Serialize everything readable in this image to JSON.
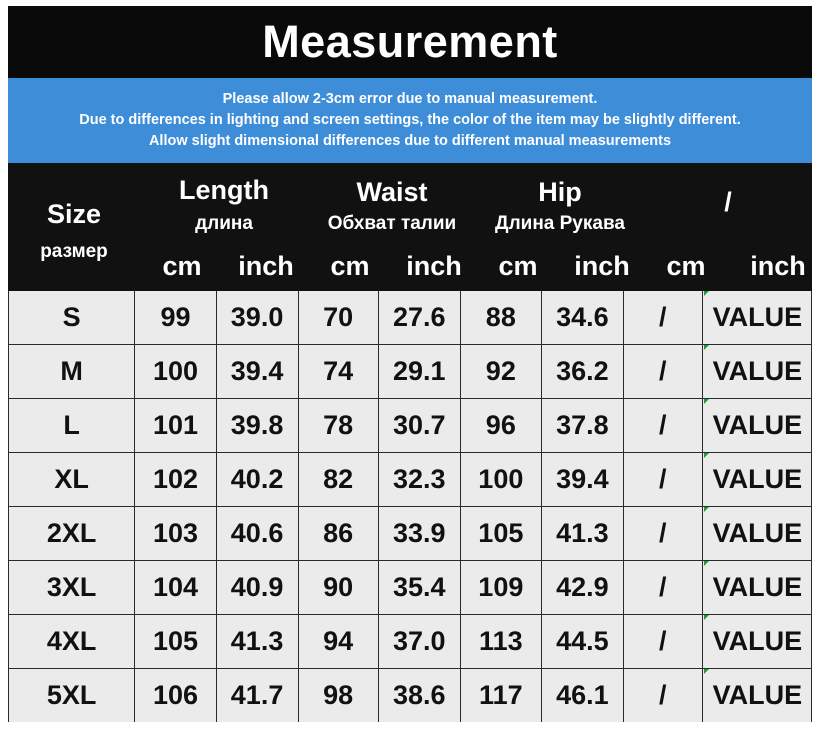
{
  "title": "Measurement",
  "notes": [
    "Please allow 2-3cm error due to manual measurement.",
    "Due to differences in lighting and screen settings, the color of the item may be slightly different.",
    "Allow slight dimensional differences due to different manual measurements"
  ],
  "header": {
    "size": {
      "title": "Size",
      "sub": "размер"
    },
    "groups": [
      {
        "title": "Length",
        "sub": "длина"
      },
      {
        "title": "Waist",
        "sub": "Обхват талии"
      },
      {
        "title": "Hip",
        "sub": "Длина Рукава"
      },
      {
        "title": "/",
        "sub": ""
      }
    ],
    "units": [
      "cm",
      "inch",
      "cm",
      "inch",
      "cm",
      "inch",
      "cm",
      "inch"
    ]
  },
  "rows": [
    {
      "size": "S",
      "cells": [
        "99",
        "39.0",
        "70",
        "27.6",
        "88",
        "34.6",
        "/",
        "VALUE"
      ]
    },
    {
      "size": "M",
      "cells": [
        "100",
        "39.4",
        "74",
        "29.1",
        "92",
        "36.2",
        "/",
        "VALUE"
      ]
    },
    {
      "size": "L",
      "cells": [
        "101",
        "39.8",
        "78",
        "30.7",
        "96",
        "37.8",
        "/",
        "VALUE"
      ]
    },
    {
      "size": "XL",
      "cells": [
        "102",
        "40.2",
        "82",
        "32.3",
        "100",
        "39.4",
        "/",
        "VALUE"
      ]
    },
    {
      "size": "2XL",
      "cells": [
        "103",
        "40.6",
        "86",
        "33.9",
        "105",
        "41.3",
        "/",
        "VALUE"
      ]
    },
    {
      "size": "3XL",
      "cells": [
        "104",
        "40.9",
        "90",
        "35.4",
        "109",
        "42.9",
        "/",
        "VALUE"
      ]
    },
    {
      "size": "4XL",
      "cells": [
        "105",
        "41.3",
        "94",
        "37.0",
        "113",
        "44.5",
        "/",
        "VALUE"
      ]
    },
    {
      "size": "5XL",
      "cells": [
        "106",
        "41.7",
        "98",
        "38.6",
        "117",
        "46.1",
        "/",
        "VALUE"
      ]
    }
  ],
  "colors": {
    "title_bg": "#0a0a0a",
    "note_bg": "#3d8dd9",
    "header_bg": "#111111",
    "cell_bg": "#ebebeb",
    "mark": "#1f9a3a"
  }
}
